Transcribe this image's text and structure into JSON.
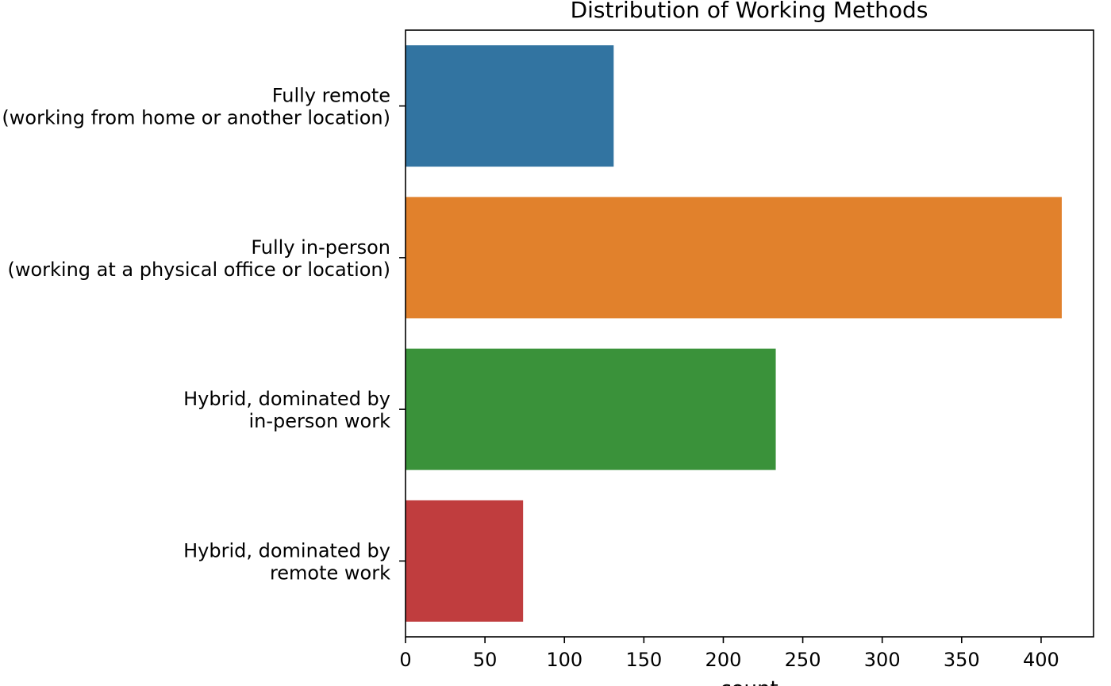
{
  "chart_data": {
    "type": "bar",
    "orientation": "horizontal",
    "title": "Distribution of Working Methods",
    "xlabel": "count",
    "ylabel": "",
    "categories": [
      [
        "Fully remote",
        "(working from home or another location)"
      ],
      [
        "Fully in-person",
        "(working at a physical office or location)"
      ],
      [
        "Hybrid, dominated by",
        "in-person work"
      ],
      [
        "Hybrid, dominated by",
        "remote work"
      ]
    ],
    "values": [
      131,
      413,
      233,
      74
    ],
    "colors": [
      "#3274a1",
      "#e1812c",
      "#3a923a",
      "#c03d3e"
    ],
    "xlim": [
      0,
      433
    ],
    "xticks": [
      0,
      50,
      100,
      150,
      200,
      250,
      300,
      350,
      400
    ],
    "grid": false
  }
}
